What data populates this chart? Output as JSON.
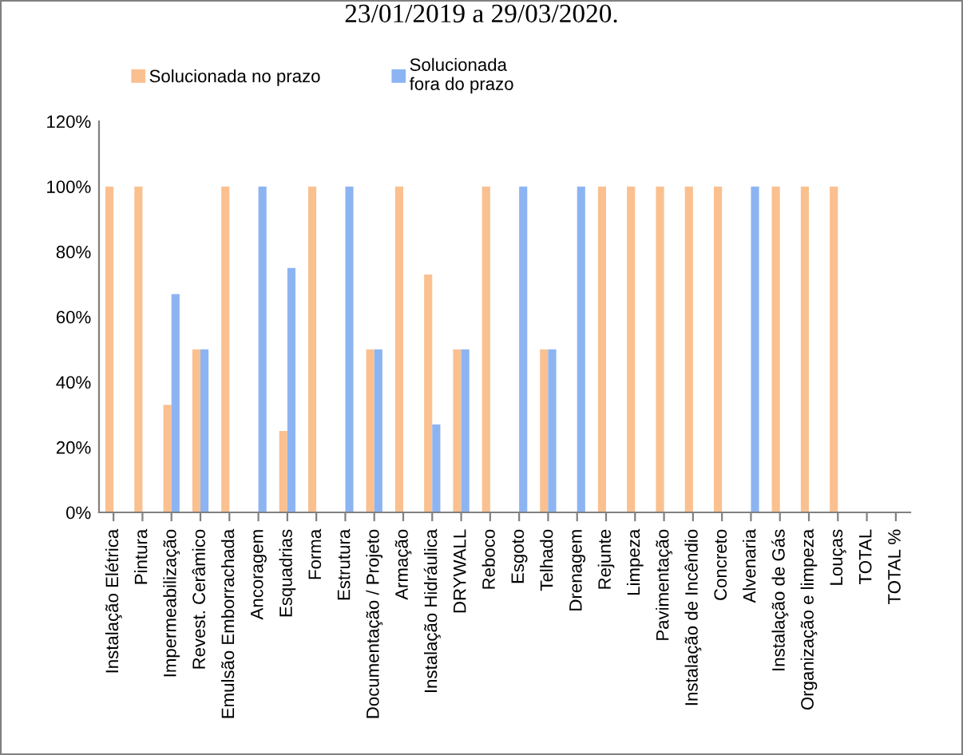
{
  "chart_data": {
    "type": "bar",
    "title": "23/01/2019 a 29/03/2020.",
    "categories": [
      "Instalação Elétrica",
      "Pintura",
      "Impermeabilização",
      "Revest. Cerâmico",
      "Emulsão Emborrachada",
      "Ancoragem",
      "Esquadrias",
      "Forma",
      "Estrutura",
      "Documentação / Projeto",
      "Armação",
      "Instalação Hidráulica",
      "DRYWALL",
      "Reboco",
      "Esgoto",
      "Telhado",
      "Drenagem",
      "Rejunte",
      "Limpeza",
      "Pavimentação",
      "Instalação de Incêndio",
      "Concreto",
      "Alvenaria",
      "Instalação de Gás",
      "Organização e limpeza",
      "Louças",
      "TOTAL",
      "TOTAL %"
    ],
    "series": [
      {
        "name": "Solucionada no prazo",
        "color": "#fac090",
        "values": [
          100,
          100,
          33,
          50,
          100,
          0,
          25,
          100,
          0,
          50,
          100,
          73,
          50,
          100,
          0,
          50,
          0,
          100,
          100,
          100,
          100,
          100,
          0,
          100,
          100,
          100,
          null,
          null
        ]
      },
      {
        "name": "Solucionada\nfora do prazo",
        "color": "#8db4f2",
        "values": [
          0,
          0,
          67,
          50,
          0,
          100,
          75,
          0,
          100,
          50,
          0,
          27,
          50,
          0,
          100,
          50,
          100,
          0,
          0,
          0,
          0,
          0,
          100,
          0,
          0,
          0,
          null,
          null
        ]
      }
    ],
    "ylim": [
      0,
      120
    ],
    "yticks": [
      {
        "value": 0,
        "label": "0%"
      },
      {
        "value": 20,
        "label": "20%"
      },
      {
        "value": 40,
        "label": "40%"
      },
      {
        "value": 60,
        "label": "60%"
      },
      {
        "value": 80,
        "label": "80%"
      },
      {
        "value": 100,
        "label": "100%"
      },
      {
        "value": 120,
        "label": "120%"
      }
    ],
    "grid": false,
    "legend": "top left"
  }
}
